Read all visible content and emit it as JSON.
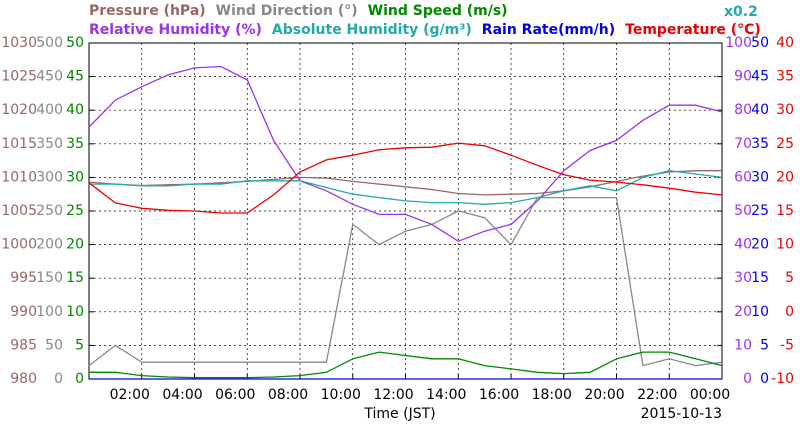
{
  "chart_data": {
    "type": "line",
    "x_label": "Time (JST)",
    "date_label": "2015-10-13",
    "xlim": [
      0,
      24
    ],
    "xticks": [
      {
        "value": 2,
        "label": "02:00"
      },
      {
        "value": 4,
        "label": "04:00"
      },
      {
        "value": 6,
        "label": "06:00"
      },
      {
        "value": 8,
        "label": "08:00"
      },
      {
        "value": 10,
        "label": "10:00"
      },
      {
        "value": 12,
        "label": "12:00"
      },
      {
        "value": 14,
        "label": "14:00"
      },
      {
        "value": 16,
        "label": "16:00"
      },
      {
        "value": 18,
        "label": "18:00"
      },
      {
        "value": 20,
        "label": "20:00"
      },
      {
        "value": 22,
        "label": "22:00"
      },
      {
        "value": 24,
        "label": "00:00"
      }
    ],
    "grid": true,
    "axes": [
      {
        "lim": [
          980,
          1030
        ],
        "ticks": [
          980,
          985,
          990,
          995,
          1000,
          1005,
          1010,
          1015,
          1020,
          1025,
          1030
        ],
        "color": "#996666"
      },
      {
        "lim": [
          0,
          500
        ],
        "ticks": [
          0,
          50,
          100,
          150,
          200,
          250,
          300,
          350,
          400,
          450,
          500
        ],
        "color": "#888888"
      },
      {
        "lim": [
          0,
          50
        ],
        "ticks": [
          0,
          5,
          10,
          15,
          20,
          25,
          30,
          35,
          40,
          45,
          50
        ],
        "color": "#008800"
      },
      {
        "lim": [
          0,
          100
        ],
        "ticks": [
          0,
          10,
          20,
          30,
          40,
          50,
          60,
          70,
          80,
          90,
          100
        ],
        "color": "#9933ee"
      },
      {
        "lim": [
          0,
          50
        ],
        "ticks": [
          0,
          5,
          10,
          15,
          20,
          25,
          30,
          35,
          40,
          45,
          50
        ],
        "color": "#0000ee"
      },
      {
        "lim": [
          -10,
          40
        ],
        "ticks": [
          -10,
          -5,
          0,
          5,
          10,
          15,
          20,
          25,
          30,
          35,
          40
        ],
        "color": "#ee0000"
      },
      {
        "lim": [
          0,
          20
        ],
        "ticks": [],
        "label": "x0.2",
        "color": "#22aaaa"
      }
    ],
    "x": [
      0,
      1,
      2,
      3,
      4,
      5,
      6,
      7,
      8,
      9,
      10,
      11,
      12,
      13,
      14,
      15,
      16,
      17,
      18,
      19,
      20,
      21,
      22,
      23,
      24
    ],
    "series": [
      {
        "name": "Pressure (hPa)",
        "color": "#996666",
        "axis": 0,
        "values": [
          1009.3,
          1009.0,
          1008.8,
          1008.9,
          1009.0,
          1009.2,
          1009.4,
          1009.7,
          1010.0,
          1009.9,
          1009.4,
          1009.0,
          1008.6,
          1008.2,
          1007.6,
          1007.4,
          1007.5,
          1007.6,
          1008.0,
          1008.6,
          1009.4,
          1010.2,
          1010.8,
          1011.0,
          1011.0
        ]
      },
      {
        "name": "Wind Direction (°)",
        "color": "#888888",
        "axis": 1,
        "values": [
          20,
          50,
          25,
          25,
          25,
          25,
          25,
          25,
          25,
          25,
          230,
          200,
          220,
          230,
          250,
          240,
          200,
          270,
          270,
          270,
          270,
          20,
          30,
          20,
          25
        ]
      },
      {
        "name": "Wind Speed (m/s)",
        "color": "#008800",
        "axis": 2,
        "values": [
          1,
          1,
          0.5,
          0.3,
          0.2,
          0.2,
          0.2,
          0.3,
          0.5,
          1,
          3,
          4,
          3.5,
          3,
          3,
          2,
          1.5,
          1,
          0.8,
          1,
          3,
          4,
          4,
          3,
          2
        ]
      },
      {
        "name": "Relative Humidity (%)",
        "color": "#9933ee",
        "axis": 3,
        "values": [
          75,
          83,
          87,
          90.5,
          92.6,
          93,
          89,
          71,
          59,
          56,
          52,
          49,
          49,
          46,
          41,
          44,
          46,
          53,
          62,
          68,
          71,
          77,
          81.5,
          81.5,
          79.5
        ]
      },
      {
        "name": "Absolute Humidity (g/m³)",
        "color": "#22aaaa",
        "axis": 6,
        "values": [
          11.6,
          11.6,
          11.5,
          11.5,
          11.6,
          11.6,
          11.8,
          11.8,
          11.8,
          11.4,
          11.0,
          10.8,
          10.6,
          10.5,
          10.5,
          10.4,
          10.5,
          10.8,
          11.2,
          11.5,
          11.2,
          12.0,
          12.4,
          12.2,
          12.0
        ]
      },
      {
        "name": "Rain Rate(mm/h)",
        "color": "#0000ee",
        "axis": 4,
        "values": [
          0,
          0,
          0,
          0,
          0,
          0,
          0,
          0,
          0,
          0,
          0,
          0,
          0,
          0,
          0,
          0,
          0,
          0,
          0,
          0,
          0,
          0,
          0,
          0,
          0
        ]
      },
      {
        "name": "Temperature (°C)",
        "color": "#ee0000",
        "axis": 5,
        "values": [
          19.2,
          16.2,
          15.4,
          15.1,
          15.0,
          14.7,
          14.7,
          17.4,
          20.8,
          22.6,
          23.3,
          24.1,
          24.4,
          24.5,
          25.1,
          24.7,
          23.3,
          21.8,
          20.4,
          19.6,
          19.3,
          18.9,
          18.4,
          17.8,
          17.4
        ]
      }
    ]
  }
}
